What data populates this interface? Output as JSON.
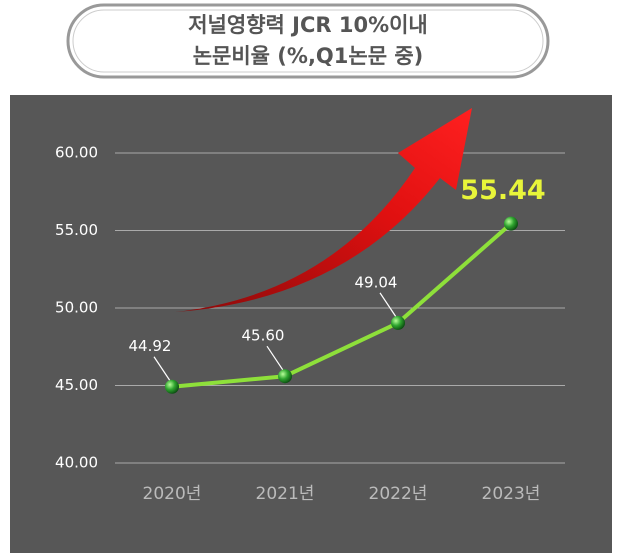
{
  "chart_data": {
    "type": "line",
    "title": [
      "저널영향력 JCR 10%이내",
      "논문비율 (%,Q1논문 중)"
    ],
    "categories": [
      "2020년",
      "2021년",
      "2022년",
      "2023년"
    ],
    "series": [
      {
        "color": "#8ee03a",
        "values": [
          44.92,
          45.6,
          49.04,
          55.44
        ],
        "value_labels": [
          "44.92",
          "45.60",
          "49.04",
          "55.44"
        ]
      }
    ],
    "ylim": [
      40,
      60
    ],
    "yticks": [
      {
        "value": 40,
        "label": "40.00"
      },
      {
        "value": 45,
        "label": "45.00"
      },
      {
        "value": 50,
        "label": "50.00"
      },
      {
        "value": 55,
        "label": "55.00"
      },
      {
        "value": 60,
        "label": "60.00"
      }
    ],
    "grid": true
  }
}
